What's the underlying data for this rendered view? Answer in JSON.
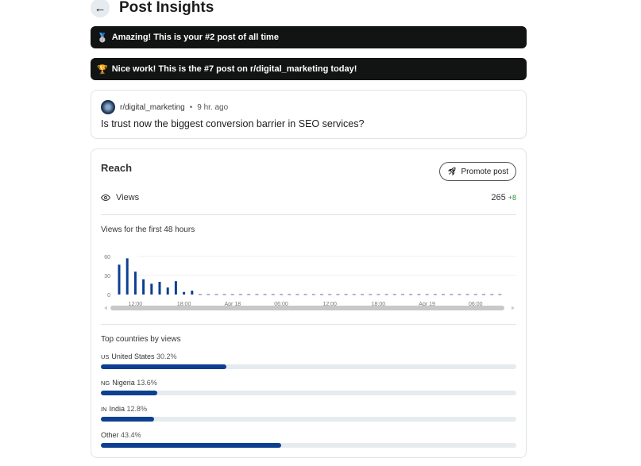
{
  "header": {
    "back_icon": "arrow-left-icon",
    "title": "Post Insights"
  },
  "banners": [
    {
      "icon": "🥈",
      "text": "Amazing! This is your #2 post of all time"
    },
    {
      "icon": "🏆",
      "text": "Nice work! This is the #7 post on r/digital_marketing today!"
    }
  ],
  "post": {
    "subreddit": "r/digital_marketing",
    "separator": "•",
    "age": "9 hr. ago",
    "title": "Is trust now the biggest conversion barrier in SEO services?"
  },
  "reach": {
    "heading": "Reach",
    "promote_label": "Promote post",
    "views_label": "Views",
    "views_value": "265",
    "views_delta": "+8",
    "chart_title": "Views for the first 48 hours",
    "countries_title": "Top countries by views",
    "countries": [
      {
        "code": "US",
        "name": "United States",
        "pct": "30.2%",
        "value": 30.2
      },
      {
        "code": "NG",
        "name": "Nigeria",
        "pct": "13.6%",
        "value": 13.6
      },
      {
        "code": "IN",
        "name": "India",
        "pct": "12.8%",
        "value": 12.8
      },
      {
        "code": "",
        "name": "Other",
        "pct": "43.4%",
        "value": 43.4
      }
    ]
  },
  "chart_data": {
    "type": "bar",
    "title": "Views for the first 48 hours",
    "x_start": "Apr 17 10:00",
    "x_interval": "1 hour",
    "hours": 48,
    "values": [
      47,
      57,
      36,
      24,
      17,
      20,
      11,
      21,
      4,
      6
    ],
    "yticks": [
      "0",
      "30",
      "60"
    ],
    "ylim": [
      0,
      60
    ],
    "xticks": [
      {
        "label": "12:00",
        "hour": 2
      },
      {
        "label": "18:00",
        "hour": 8
      },
      {
        "label": "Apr 18",
        "hour": 14
      },
      {
        "label": "06:00",
        "hour": 20
      },
      {
        "label": "12:00",
        "hour": 26
      },
      {
        "label": "18:00",
        "hour": 32
      },
      {
        "label": "Apr 19",
        "hour": 38
      },
      {
        "label": "06:00",
        "hour": 44
      }
    ],
    "bar_color": "#0d3f91",
    "grid": true
  }
}
